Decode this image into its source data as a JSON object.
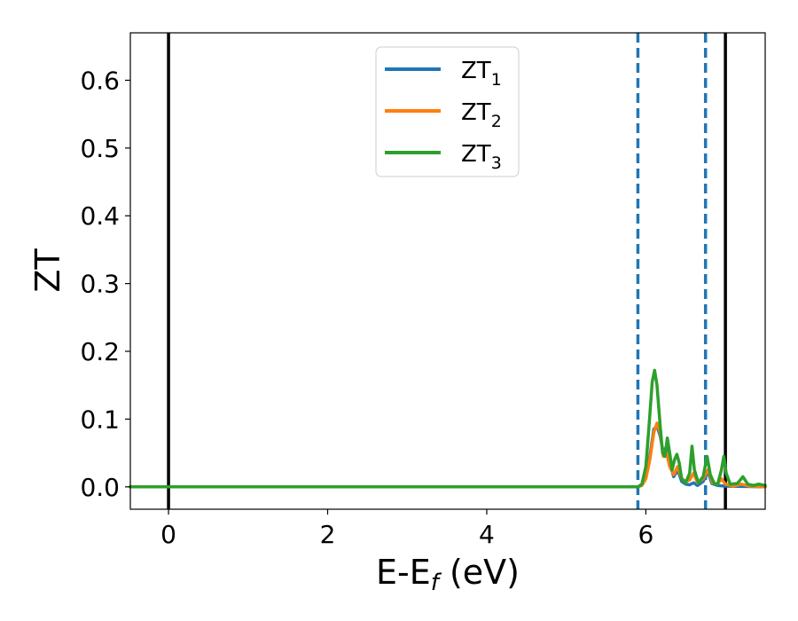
{
  "chart_data": {
    "type": "line",
    "xlabel": {
      "main": "E-E",
      "sub": "f",
      "suffix": " (eV)"
    },
    "ylabel": "ZT",
    "xlim": [
      -0.48,
      7.5
    ],
    "ylim": [
      -0.033,
      0.67
    ],
    "xticks": [
      {
        "value": 0,
        "label": "0"
      },
      {
        "value": 2,
        "label": "2"
      },
      {
        "value": 4,
        "label": "4"
      },
      {
        "value": 6,
        "label": "6"
      }
    ],
    "yticks": [
      {
        "value": 0.0,
        "label": "0.0"
      },
      {
        "value": 0.1,
        "label": "0.1"
      },
      {
        "value": 0.2,
        "label": "0.2"
      },
      {
        "value": 0.3,
        "label": "0.3"
      },
      {
        "value": 0.4,
        "label": "0.4"
      },
      {
        "value": 0.5,
        "label": "0.5"
      },
      {
        "value": 0.6,
        "label": "0.6"
      }
    ],
    "grid": false,
    "legend_position": "upper-center",
    "vertical_lines": [
      {
        "x": 0.0,
        "style": "solid",
        "color": "#000000"
      },
      {
        "x": 7.0,
        "style": "solid",
        "color": "#000000"
      },
      {
        "x": 5.9,
        "style": "dashed",
        "color": "#1f77b4"
      },
      {
        "x": 6.75,
        "style": "dashed",
        "color": "#1f77b4"
      }
    ],
    "series": [
      {
        "name": "ZT",
        "name_sub": "1",
        "color": "#1f77b4",
        "points": [
          [
            -0.48,
            0
          ],
          [
            5.9,
            0
          ],
          [
            5.95,
            0.003
          ],
          [
            6.0,
            0.015
          ],
          [
            6.05,
            0.045
          ],
          [
            6.1,
            0.085
          ],
          [
            6.14,
            0.09
          ],
          [
            6.18,
            0.075
          ],
          [
            6.22,
            0.05
          ],
          [
            6.26,
            0.06
          ],
          [
            6.3,
            0.035
          ],
          [
            6.35,
            0.015
          ],
          [
            6.4,
            0.025
          ],
          [
            6.45,
            0.008
          ],
          [
            6.5,
            0.004
          ],
          [
            6.55,
            0.003
          ],
          [
            6.6,
            0.006
          ],
          [
            6.65,
            0.002
          ],
          [
            6.72,
            0.008
          ],
          [
            6.78,
            0.022
          ],
          [
            6.83,
            0.005
          ],
          [
            6.9,
            0.002
          ],
          [
            7.0,
            0.001
          ],
          [
            7.5,
            0
          ]
        ]
      },
      {
        "name": "ZT",
        "name_sub": "2",
        "color": "#ff7f0e",
        "points": [
          [
            -0.48,
            0
          ],
          [
            5.9,
            0
          ],
          [
            5.95,
            0.002
          ],
          [
            6.0,
            0.012
          ],
          [
            6.05,
            0.04
          ],
          [
            6.1,
            0.08
          ],
          [
            6.14,
            0.094
          ],
          [
            6.18,
            0.08
          ],
          [
            6.22,
            0.045
          ],
          [
            6.26,
            0.05
          ],
          [
            6.3,
            0.03
          ],
          [
            6.35,
            0.018
          ],
          [
            6.4,
            0.03
          ],
          [
            6.45,
            0.012
          ],
          [
            6.5,
            0.008
          ],
          [
            6.55,
            0.01
          ],
          [
            6.6,
            0.02
          ],
          [
            6.65,
            0.006
          ],
          [
            6.72,
            0.012
          ],
          [
            6.78,
            0.025
          ],
          [
            6.84,
            0.006
          ],
          [
            6.9,
            0.004
          ],
          [
            6.95,
            0.012
          ],
          [
            7.0,
            0.004
          ],
          [
            7.1,
            0.001
          ],
          [
            7.2,
            0.004
          ],
          [
            7.3,
            0.001
          ],
          [
            7.5,
            0
          ]
        ]
      },
      {
        "name": "ZT",
        "name_sub": "3",
        "color": "#2ca02c",
        "points": [
          [
            -0.48,
            0
          ],
          [
            5.9,
            0
          ],
          [
            5.95,
            0.004
          ],
          [
            6.0,
            0.03
          ],
          [
            6.04,
            0.09
          ],
          [
            6.08,
            0.155
          ],
          [
            6.11,
            0.172
          ],
          [
            6.14,
            0.15
          ],
          [
            6.18,
            0.09
          ],
          [
            6.21,
            0.05
          ],
          [
            6.24,
            0.045
          ],
          [
            6.27,
            0.072
          ],
          [
            6.3,
            0.05
          ],
          [
            6.33,
            0.025
          ],
          [
            6.36,
            0.04
          ],
          [
            6.39,
            0.048
          ],
          [
            6.42,
            0.035
          ],
          [
            6.45,
            0.012
          ],
          [
            6.5,
            0.006
          ],
          [
            6.55,
            0.02
          ],
          [
            6.58,
            0.06
          ],
          [
            6.61,
            0.025
          ],
          [
            6.66,
            0.006
          ],
          [
            6.72,
            0.015
          ],
          [
            6.77,
            0.045
          ],
          [
            6.81,
            0.018
          ],
          [
            6.86,
            0.005
          ],
          [
            6.9,
            0.003
          ],
          [
            6.95,
            0.025
          ],
          [
            6.98,
            0.045
          ],
          [
            7.01,
            0.02
          ],
          [
            7.06,
            0.004
          ],
          [
            7.15,
            0.005
          ],
          [
            7.22,
            0.015
          ],
          [
            7.28,
            0.004
          ],
          [
            7.35,
            0.002
          ],
          [
            7.42,
            0.004
          ],
          [
            7.5,
            0.002
          ]
        ]
      }
    ]
  }
}
